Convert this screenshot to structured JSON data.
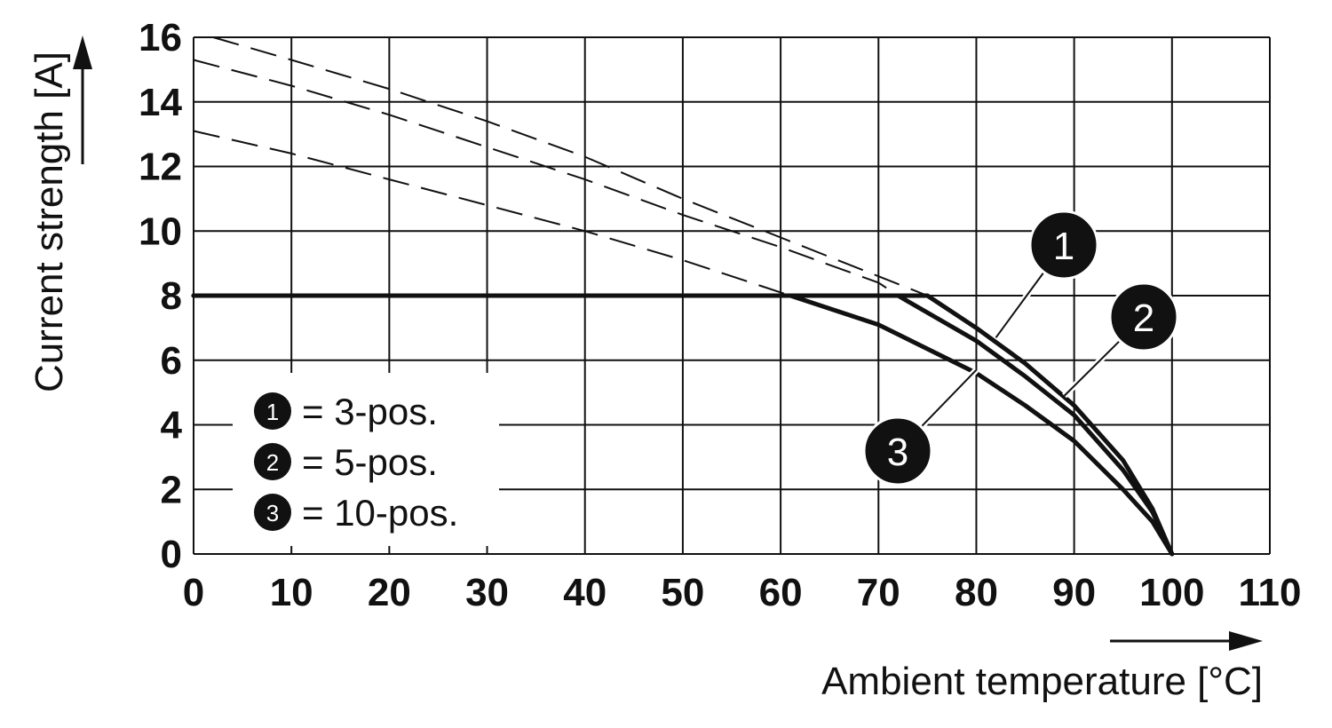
{
  "chart_data": {
    "type": "line",
    "title": "",
    "xlabel": "Ambient temperature [°C]",
    "ylabel": "Current strength [A]",
    "xlim": [
      0,
      110
    ],
    "ylim": [
      0,
      16
    ],
    "x_ticks": [
      "0",
      "10",
      "20",
      "30",
      "40",
      "50",
      "60",
      "70",
      "80",
      "90",
      "100",
      "110"
    ],
    "y_ticks": [
      "0",
      "2",
      "4",
      "6",
      "8",
      "10",
      "12",
      "14",
      "16"
    ],
    "grid": true,
    "series": [
      {
        "name": "3-pos.",
        "label": "1",
        "dashed": {
          "x": [
            2,
            10,
            20,
            30,
            40,
            50,
            60,
            70,
            75
          ],
          "y": [
            16.0,
            15.3,
            14.4,
            13.4,
            12.3,
            11.0,
            9.8,
            8.6,
            8.0
          ]
        },
        "solid": {
          "x": [
            0,
            75,
            80,
            85,
            90,
            95,
            98,
            100
          ],
          "y": [
            8,
            8,
            7.0,
            5.9,
            4.6,
            2.9,
            1.4,
            0
          ]
        }
      },
      {
        "name": "5-pos.",
        "label": "2",
        "dashed": {
          "x": [
            0,
            10,
            20,
            30,
            40,
            50,
            60,
            70,
            72
          ],
          "y": [
            15.3,
            14.5,
            13.6,
            12.6,
            11.6,
            10.5,
            9.5,
            8.4,
            8.0
          ]
        },
        "solid": {
          "x": [
            0,
            72,
            80,
            85,
            90,
            95,
            98,
            100
          ],
          "y": [
            8,
            8,
            6.6,
            5.5,
            4.3,
            2.6,
            1.3,
            0
          ]
        }
      },
      {
        "name": "10-pos.",
        "label": "3",
        "dashed": {
          "x": [
            0,
            10,
            20,
            30,
            40,
            50,
            61
          ],
          "y": [
            13.1,
            12.4,
            11.6,
            10.8,
            10.0,
            9.1,
            8.0
          ]
        },
        "solid": {
          "x": [
            0,
            61,
            70,
            80,
            85,
            90,
            95,
            98,
            100
          ],
          "y": [
            8,
            8,
            7.1,
            5.6,
            4.6,
            3.5,
            2.0,
            1.0,
            0
          ]
        }
      }
    ],
    "legend": {
      "position": "bottom-left",
      "entries": [
        {
          "badge": "1",
          "text": "= 3-pos."
        },
        {
          "badge": "2",
          "text": "= 5-pos."
        },
        {
          "badge": "3",
          "text": "= 10-pos."
        }
      ]
    },
    "callouts": [
      {
        "badge": "1",
        "anchor_x": 82,
        "anchor_y": 6.7
      },
      {
        "badge": "2",
        "anchor_x": 89,
        "anchor_y": 4.9
      },
      {
        "badge": "3",
        "anchor_x": 80,
        "anchor_y": 5.7
      }
    ]
  },
  "colors": {
    "line": "#111111",
    "grid": "#111111",
    "badge": "#111111",
    "background": "#ffffff"
  }
}
